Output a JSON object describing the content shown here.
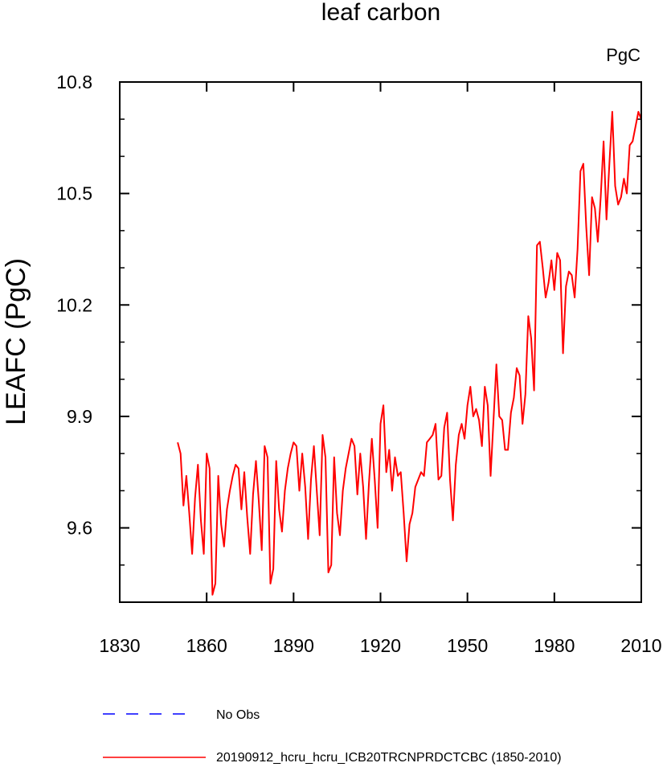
{
  "chart_data": {
    "type": "line",
    "title": "leaf carbon",
    "units_label": "PgC",
    "xlabel": "",
    "ylabel": "LEAFC  (PgC)",
    "xlim": [
      1830,
      2010
    ],
    "ylim": [
      9.4,
      10.8
    ],
    "x_ticks": [
      1830,
      1860,
      1890,
      1920,
      1950,
      1980,
      2010
    ],
    "y_ticks": [
      9.6,
      9.9,
      10.2,
      10.5,
      10.8
    ],
    "y_tick_labels": [
      "9.6",
      "9.9",
      "10.2",
      "10.5",
      "10.8"
    ],
    "grid": false,
    "legend_position": "bottom",
    "series": [
      {
        "name": "No Obs",
        "color": "#0000ff",
        "dash": "dashed",
        "x": [],
        "y": []
      },
      {
        "name": "20190912_hcru_hcru_ICB20TRCNPRDCTCBC (1850-2010)",
        "color": "#ff0000",
        "dash": "solid",
        "x": [
          1850,
          1851,
          1852,
          1853,
          1854,
          1855,
          1856,
          1857,
          1858,
          1859,
          1860,
          1861,
          1862,
          1863,
          1864,
          1865,
          1866,
          1867,
          1868,
          1869,
          1870,
          1871,
          1872,
          1873,
          1874,
          1875,
          1876,
          1877,
          1878,
          1879,
          1880,
          1881,
          1882,
          1883,
          1884,
          1885,
          1886,
          1887,
          1888,
          1889,
          1890,
          1891,
          1892,
          1893,
          1894,
          1895,
          1896,
          1897,
          1898,
          1899,
          1900,
          1901,
          1902,
          1903,
          1904,
          1905,
          1906,
          1907,
          1908,
          1909,
          1910,
          1911,
          1912,
          1913,
          1914,
          1915,
          1916,
          1917,
          1918,
          1919,
          1920,
          1921,
          1922,
          1923,
          1924,
          1925,
          1926,
          1927,
          1928,
          1929,
          1930,
          1931,
          1932,
          1933,
          1934,
          1935,
          1936,
          1937,
          1938,
          1939,
          1940,
          1941,
          1942,
          1943,
          1944,
          1945,
          1946,
          1947,
          1948,
          1949,
          1950,
          1951,
          1952,
          1953,
          1954,
          1955,
          1956,
          1957,
          1958,
          1959,
          1960,
          1961,
          1962,
          1963,
          1964,
          1965,
          1966,
          1967,
          1968,
          1969,
          1970,
          1971,
          1972,
          1973,
          1974,
          1975,
          1976,
          1977,
          1978,
          1979,
          1980,
          1981,
          1982,
          1983,
          1984,
          1985,
          1986,
          1987,
          1988,
          1989,
          1990,
          1991,
          1992,
          1993,
          1994,
          1995,
          1996,
          1997,
          1998,
          1999,
          2000,
          2001,
          2002,
          2003,
          2004,
          2005,
          2006,
          2007,
          2008,
          2009,
          2010
        ],
        "y": [
          9.83,
          9.8,
          9.66,
          9.74,
          9.64,
          9.53,
          9.68,
          9.77,
          9.62,
          9.53,
          9.8,
          9.76,
          9.42,
          9.45,
          9.74,
          9.61,
          9.55,
          9.65,
          9.7,
          9.74,
          9.77,
          9.76,
          9.65,
          9.75,
          9.63,
          9.53,
          9.69,
          9.78,
          9.67,
          9.54,
          9.82,
          9.79,
          9.45,
          9.49,
          9.78,
          9.65,
          9.59,
          9.7,
          9.76,
          9.8,
          9.83,
          9.82,
          9.7,
          9.8,
          9.71,
          9.57,
          9.73,
          9.82,
          9.7,
          9.58,
          9.85,
          9.79,
          9.48,
          9.5,
          9.79,
          9.64,
          9.58,
          9.7,
          9.76,
          9.8,
          9.84,
          9.82,
          9.69,
          9.8,
          9.71,
          9.57,
          9.72,
          9.84,
          9.73,
          9.6,
          9.88,
          9.93,
          9.75,
          9.81,
          9.7,
          9.79,
          9.74,
          9.75,
          9.64,
          9.51,
          9.61,
          9.64,
          9.71,
          9.73,
          9.75,
          9.74,
          9.83,
          9.84,
          9.85,
          9.88,
          9.73,
          9.74,
          9.87,
          9.91,
          9.73,
          9.62,
          9.77,
          9.85,
          9.88,
          9.84,
          9.93,
          9.98,
          9.9,
          9.92,
          9.89,
          9.82,
          9.98,
          9.93,
          9.74,
          9.89,
          10.04,
          9.9,
          9.89,
          9.81,
          9.81,
          9.91,
          9.95,
          10.03,
          10.01,
          9.88,
          9.96,
          10.17,
          10.11,
          9.97,
          10.36,
          10.37,
          10.3,
          10.22,
          10.26,
          10.32,
          10.24,
          10.34,
          10.32,
          10.07,
          10.25,
          10.29,
          10.28,
          10.22,
          10.35,
          10.56,
          10.58,
          10.41,
          10.28,
          10.49,
          10.46,
          10.37,
          10.49,
          10.64,
          10.43,
          10.58,
          10.72,
          10.52,
          10.47,
          10.49,
          10.54,
          10.5,
          10.63,
          10.64,
          10.68,
          10.72,
          10.7
        ]
      }
    ]
  }
}
